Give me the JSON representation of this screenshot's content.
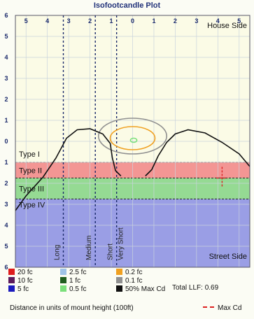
{
  "chart_data": {
    "type": "isofootcandle",
    "title": "Isofootcandle Plot",
    "x_axis": {
      "ticks": [
        "5",
        "4",
        "3",
        "2",
        "1",
        "0",
        "1",
        "2",
        "3",
        "4",
        "5"
      ],
      "range": [
        -5.5,
        5.5
      ]
    },
    "y_axis": {
      "ticks": [
        "6",
        "5",
        "4",
        "3",
        "2",
        "1",
        "0",
        "1",
        "2",
        "3",
        "4",
        "5",
        "6"
      ],
      "range": [
        -6,
        6
      ]
    },
    "region_labels": {
      "top": "House Side",
      "bottom": "Street Side"
    },
    "type_bands": [
      {
        "label": "Type I",
        "y0": 0,
        "y1": 1,
        "color": ""
      },
      {
        "label": "Type II",
        "y0": 1,
        "y1": 1.75,
        "color": "#f28b8b"
      },
      {
        "label": "Type III",
        "y0": 1.75,
        "y1": 2.75,
        "color": "#8ad68a"
      },
      {
        "label": "Type IV",
        "y0": 2.75,
        "y1": 6,
        "color": "#8f93e4"
      }
    ],
    "distance_lines": [
      {
        "label": "Long",
        "x": -3.25
      },
      {
        "label": "Medium",
        "x": -1.75
      },
      {
        "label": "Short",
        "x": -0.75
      },
      {
        "label": "Very Short",
        "x": -0.75
      }
    ],
    "contours": [
      {
        "level": "0.1 fc",
        "color": "#909090",
        "cx": 0,
        "cy": -0.25,
        "rx": 1.6,
        "ry": 0.85
      },
      {
        "level": "0.2 fc",
        "color": "#f0a020",
        "cx": 0,
        "cy": -0.15,
        "rx": 1.05,
        "ry": 0.55
      },
      {
        "level": "0.5 fc",
        "color": "#7be07b",
        "cx": 0.05,
        "cy": -0.05,
        "rx": 0.15,
        "ry": 0.1
      }
    ],
    "max_cd_point": {
      "x": 4.2,
      "y": 1.75
    },
    "legend": [
      {
        "label": "20 fc",
        "color": "#dd1c1c"
      },
      {
        "label": "2.5 fc",
        "color": "#9fc3e8"
      },
      {
        "label": "0.2 fc",
        "color": "#f0a020"
      },
      {
        "label": "10 fc",
        "color": "#5c1b5c"
      },
      {
        "label": "1 fc",
        "color": "#1f5e1f"
      },
      {
        "label": "0.1 fc",
        "color": "#909090"
      },
      {
        "label": "5 fc",
        "color": "#1b1bbd"
      },
      {
        "label": "0.5 fc",
        "color": "#7be07b"
      },
      {
        "label": "50% Max Cd",
        "color": "#111111"
      }
    ],
    "total_llf": "Total LLF: 0.69",
    "distance_note": "Distance in units of mount height (100ft)",
    "max_cd_label": "Max Cd"
  }
}
